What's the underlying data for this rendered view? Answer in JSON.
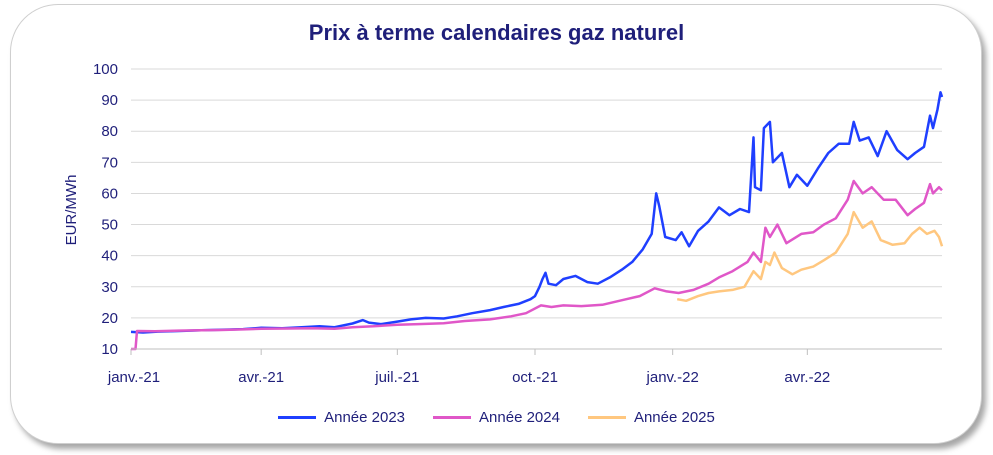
{
  "chart_data": {
    "type": "line",
    "title": "Prix à terme calendaires gaz naturel",
    "ylabel": "EUR/MWh",
    "xlabel": "",
    "ylim": [
      10,
      100
    ],
    "yticks": [
      10,
      20,
      30,
      40,
      50,
      60,
      70,
      80,
      90,
      100
    ],
    "xlim": [
      "2021-01-04",
      "2022-06-30"
    ],
    "xticks": [
      {
        "date": "2021-01-01",
        "label": "janv.-21"
      },
      {
        "date": "2021-04-01",
        "label": "avr.-21"
      },
      {
        "date": "2021-07-01",
        "label": "juil.-21"
      },
      {
        "date": "2021-10-01",
        "label": "oct.-21"
      },
      {
        "date": "2022-01-01",
        "label": "janv.-22"
      },
      {
        "date": "2022-04-01",
        "label": "avr.-22"
      }
    ],
    "grid": "horizontal",
    "legend_position": "bottom",
    "series": [
      {
        "name": "Année 2023",
        "color": "#1f3fff",
        "points": [
          [
            "2021-01-04",
            15.5
          ],
          [
            "2021-01-12",
            15.3
          ],
          [
            "2021-01-22",
            15.6
          ],
          [
            "2021-02-05",
            15.8
          ],
          [
            "2021-02-20",
            16.0
          ],
          [
            "2021-03-05",
            16.2
          ],
          [
            "2021-03-20",
            16.4
          ],
          [
            "2021-04-01",
            16.8
          ],
          [
            "2021-04-15",
            16.7
          ],
          [
            "2021-04-28",
            17.0
          ],
          [
            "2021-05-10",
            17.3
          ],
          [
            "2021-05-20",
            17.0
          ],
          [
            "2021-06-01",
            18.2
          ],
          [
            "2021-06-08",
            19.3
          ],
          [
            "2021-06-12",
            18.5
          ],
          [
            "2021-06-20",
            18.0
          ],
          [
            "2021-07-01",
            18.8
          ],
          [
            "2021-07-10",
            19.5
          ],
          [
            "2021-07-20",
            20.0
          ],
          [
            "2021-08-01",
            19.8
          ],
          [
            "2021-08-10",
            20.5
          ],
          [
            "2021-08-20",
            21.5
          ],
          [
            "2021-09-01",
            22.5
          ],
          [
            "2021-09-10",
            23.5
          ],
          [
            "2021-09-20",
            24.5
          ],
          [
            "2021-09-28",
            26.0
          ],
          [
            "2021-10-01",
            27.0
          ],
          [
            "2021-10-04",
            30.0
          ],
          [
            "2021-10-06",
            32.5
          ],
          [
            "2021-10-08",
            34.5
          ],
          [
            "2021-10-10",
            31.0
          ],
          [
            "2021-10-15",
            30.5
          ],
          [
            "2021-10-20",
            32.5
          ],
          [
            "2021-10-28",
            33.5
          ],
          [
            "2021-11-05",
            31.5
          ],
          [
            "2021-11-12",
            31.0
          ],
          [
            "2021-11-20",
            33.0
          ],
          [
            "2021-11-28",
            35.5
          ],
          [
            "2021-12-05",
            38.0
          ],
          [
            "2021-12-12",
            42.0
          ],
          [
            "2021-12-18",
            47.0
          ],
          [
            "2021-12-21",
            60.0
          ],
          [
            "2021-12-23",
            56.0
          ],
          [
            "2021-12-27",
            46.0
          ],
          [
            "2022-01-03",
            45.0
          ],
          [
            "2022-01-07",
            47.5
          ],
          [
            "2022-01-12",
            43.0
          ],
          [
            "2022-01-18",
            48.0
          ],
          [
            "2022-01-25",
            51.0
          ],
          [
            "2022-02-01",
            55.5
          ],
          [
            "2022-02-08",
            53.0
          ],
          [
            "2022-02-15",
            55.0
          ],
          [
            "2022-02-21",
            54.0
          ],
          [
            "2022-02-24",
            78.0
          ],
          [
            "2022-02-25",
            62.0
          ],
          [
            "2022-03-01",
            61.0
          ],
          [
            "2022-03-03",
            81.0
          ],
          [
            "2022-03-07",
            83.0
          ],
          [
            "2022-03-09",
            70.0
          ],
          [
            "2022-03-15",
            73.0
          ],
          [
            "2022-03-20",
            62.0
          ],
          [
            "2022-03-25",
            66.0
          ],
          [
            "2022-04-01",
            62.5
          ],
          [
            "2022-04-08",
            68.0
          ],
          [
            "2022-04-15",
            73.0
          ],
          [
            "2022-04-22",
            76.0
          ],
          [
            "2022-04-29",
            76.0
          ],
          [
            "2022-05-02",
            83.0
          ],
          [
            "2022-05-06",
            77.0
          ],
          [
            "2022-05-12",
            78.0
          ],
          [
            "2022-05-18",
            72.0
          ],
          [
            "2022-05-24",
            80.0
          ],
          [
            "2022-05-31",
            74.0
          ],
          [
            "2022-06-07",
            71.0
          ],
          [
            "2022-06-12",
            73.0
          ],
          [
            "2022-06-18",
            75.0
          ],
          [
            "2022-06-22",
            85.0
          ],
          [
            "2022-06-24",
            81.0
          ],
          [
            "2022-06-27",
            87.0
          ],
          [
            "2022-06-29",
            92.5
          ],
          [
            "2022-06-30",
            91.0
          ]
        ]
      },
      {
        "name": "Année 2024",
        "color": "#e057c8",
        "points": [
          [
            "2021-01-04",
            10.0
          ],
          [
            "2021-01-07",
            10.0
          ],
          [
            "2021-01-08",
            15.8
          ],
          [
            "2021-01-20",
            15.7
          ],
          [
            "2021-02-05",
            15.9
          ],
          [
            "2021-02-20",
            16.0
          ],
          [
            "2021-03-05",
            16.1
          ],
          [
            "2021-03-20",
            16.3
          ],
          [
            "2021-04-01",
            16.5
          ],
          [
            "2021-04-20",
            16.6
          ],
          [
            "2021-05-05",
            16.7
          ],
          [
            "2021-05-20",
            16.5
          ],
          [
            "2021-06-01",
            17.0
          ],
          [
            "2021-06-15",
            17.3
          ],
          [
            "2021-07-01",
            17.8
          ],
          [
            "2021-07-15",
            18.0
          ],
          [
            "2021-08-01",
            18.3
          ],
          [
            "2021-08-15",
            19.0
          ],
          [
            "2021-09-01",
            19.5
          ],
          [
            "2021-09-15",
            20.5
          ],
          [
            "2021-09-25",
            21.5
          ],
          [
            "2021-10-05",
            24.0
          ],
          [
            "2021-10-12",
            23.5
          ],
          [
            "2021-10-20",
            24.0
          ],
          [
            "2021-11-01",
            23.8
          ],
          [
            "2021-11-15",
            24.2
          ],
          [
            "2021-12-01",
            26.0
          ],
          [
            "2021-12-10",
            27.0
          ],
          [
            "2021-12-20",
            29.5
          ],
          [
            "2021-12-28",
            28.5
          ],
          [
            "2022-01-05",
            28.0
          ],
          [
            "2022-01-15",
            29.0
          ],
          [
            "2022-01-25",
            31.0
          ],
          [
            "2022-02-01",
            33.0
          ],
          [
            "2022-02-10",
            35.0
          ],
          [
            "2022-02-20",
            38.0
          ],
          [
            "2022-02-24",
            41.0
          ],
          [
            "2022-03-01",
            38.0
          ],
          [
            "2022-03-04",
            49.0
          ],
          [
            "2022-03-07",
            46.0
          ],
          [
            "2022-03-12",
            50.0
          ],
          [
            "2022-03-18",
            44.0
          ],
          [
            "2022-03-28",
            47.0
          ],
          [
            "2022-04-05",
            47.5
          ],
          [
            "2022-04-12",
            50.0
          ],
          [
            "2022-04-20",
            52.0
          ],
          [
            "2022-04-28",
            58.0
          ],
          [
            "2022-05-02",
            64.0
          ],
          [
            "2022-05-08",
            60.0
          ],
          [
            "2022-05-14",
            62.0
          ],
          [
            "2022-05-22",
            58.0
          ],
          [
            "2022-05-30",
            58.0
          ],
          [
            "2022-06-07",
            53.0
          ],
          [
            "2022-06-12",
            55.0
          ],
          [
            "2022-06-18",
            57.0
          ],
          [
            "2022-06-22",
            63.0
          ],
          [
            "2022-06-24",
            60.0
          ],
          [
            "2022-06-28",
            62.0
          ],
          [
            "2022-06-30",
            61.0
          ]
        ]
      },
      {
        "name": "Année 2025",
        "color": "#ffc77f",
        "points": [
          [
            "2022-01-04",
            26.0
          ],
          [
            "2022-01-10",
            25.5
          ],
          [
            "2022-01-18",
            27.0
          ],
          [
            "2022-01-25",
            28.0
          ],
          [
            "2022-02-01",
            28.5
          ],
          [
            "2022-02-10",
            29.0
          ],
          [
            "2022-02-18",
            30.0
          ],
          [
            "2022-02-24",
            35.0
          ],
          [
            "2022-03-01",
            32.5
          ],
          [
            "2022-03-04",
            38.0
          ],
          [
            "2022-03-07",
            37.0
          ],
          [
            "2022-03-10",
            41.0
          ],
          [
            "2022-03-15",
            36.0
          ],
          [
            "2022-03-22",
            34.0
          ],
          [
            "2022-03-28",
            35.5
          ],
          [
            "2022-04-05",
            36.5
          ],
          [
            "2022-04-12",
            38.5
          ],
          [
            "2022-04-20",
            41.0
          ],
          [
            "2022-04-28",
            47.0
          ],
          [
            "2022-05-02",
            54.0
          ],
          [
            "2022-05-08",
            49.0
          ],
          [
            "2022-05-14",
            51.0
          ],
          [
            "2022-05-20",
            45.0
          ],
          [
            "2022-05-28",
            43.5
          ],
          [
            "2022-06-05",
            44.0
          ],
          [
            "2022-06-10",
            47.0
          ],
          [
            "2022-06-15",
            49.0
          ],
          [
            "2022-06-20",
            47.0
          ],
          [
            "2022-06-25",
            48.0
          ],
          [
            "2022-06-28",
            46.0
          ],
          [
            "2022-06-30",
            43.0
          ]
        ]
      }
    ]
  }
}
